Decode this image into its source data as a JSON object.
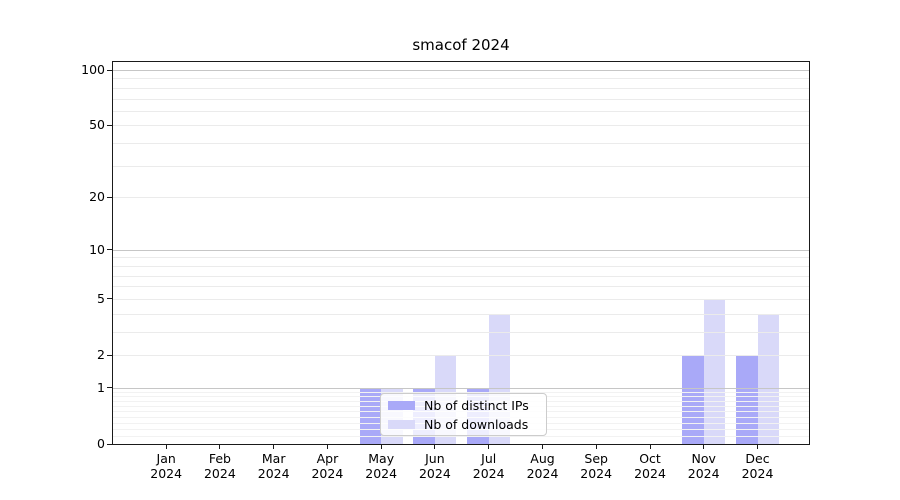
{
  "chart_data": {
    "type": "bar",
    "title": "smacof 2024",
    "categories": [
      "Jan",
      "Feb",
      "Mar",
      "Apr",
      "May",
      "Jun",
      "Jul",
      "Aug",
      "Sep",
      "Oct",
      "Nov",
      "Dec"
    ],
    "category_year": "2024",
    "series": [
      {
        "name": "Nb of distinct IPs",
        "color": "#a9a9f8",
        "values": [
          0,
          0,
          0,
          0,
          1,
          1,
          1,
          0,
          0,
          0,
          2,
          2
        ]
      },
      {
        "name": "Nb of downloads",
        "color": "#d9d9f9",
        "values": [
          0,
          0,
          0,
          0,
          1,
          2,
          4,
          0,
          0,
          0,
          5,
          4
        ]
      }
    ],
    "yscale": "log1p",
    "ylim": [
      0,
      100
    ],
    "yticks": [
      0,
      1,
      2,
      5,
      10,
      20,
      50,
      100
    ],
    "grid": true,
    "legend_position": "inside bottom, over May-Jul bars"
  }
}
